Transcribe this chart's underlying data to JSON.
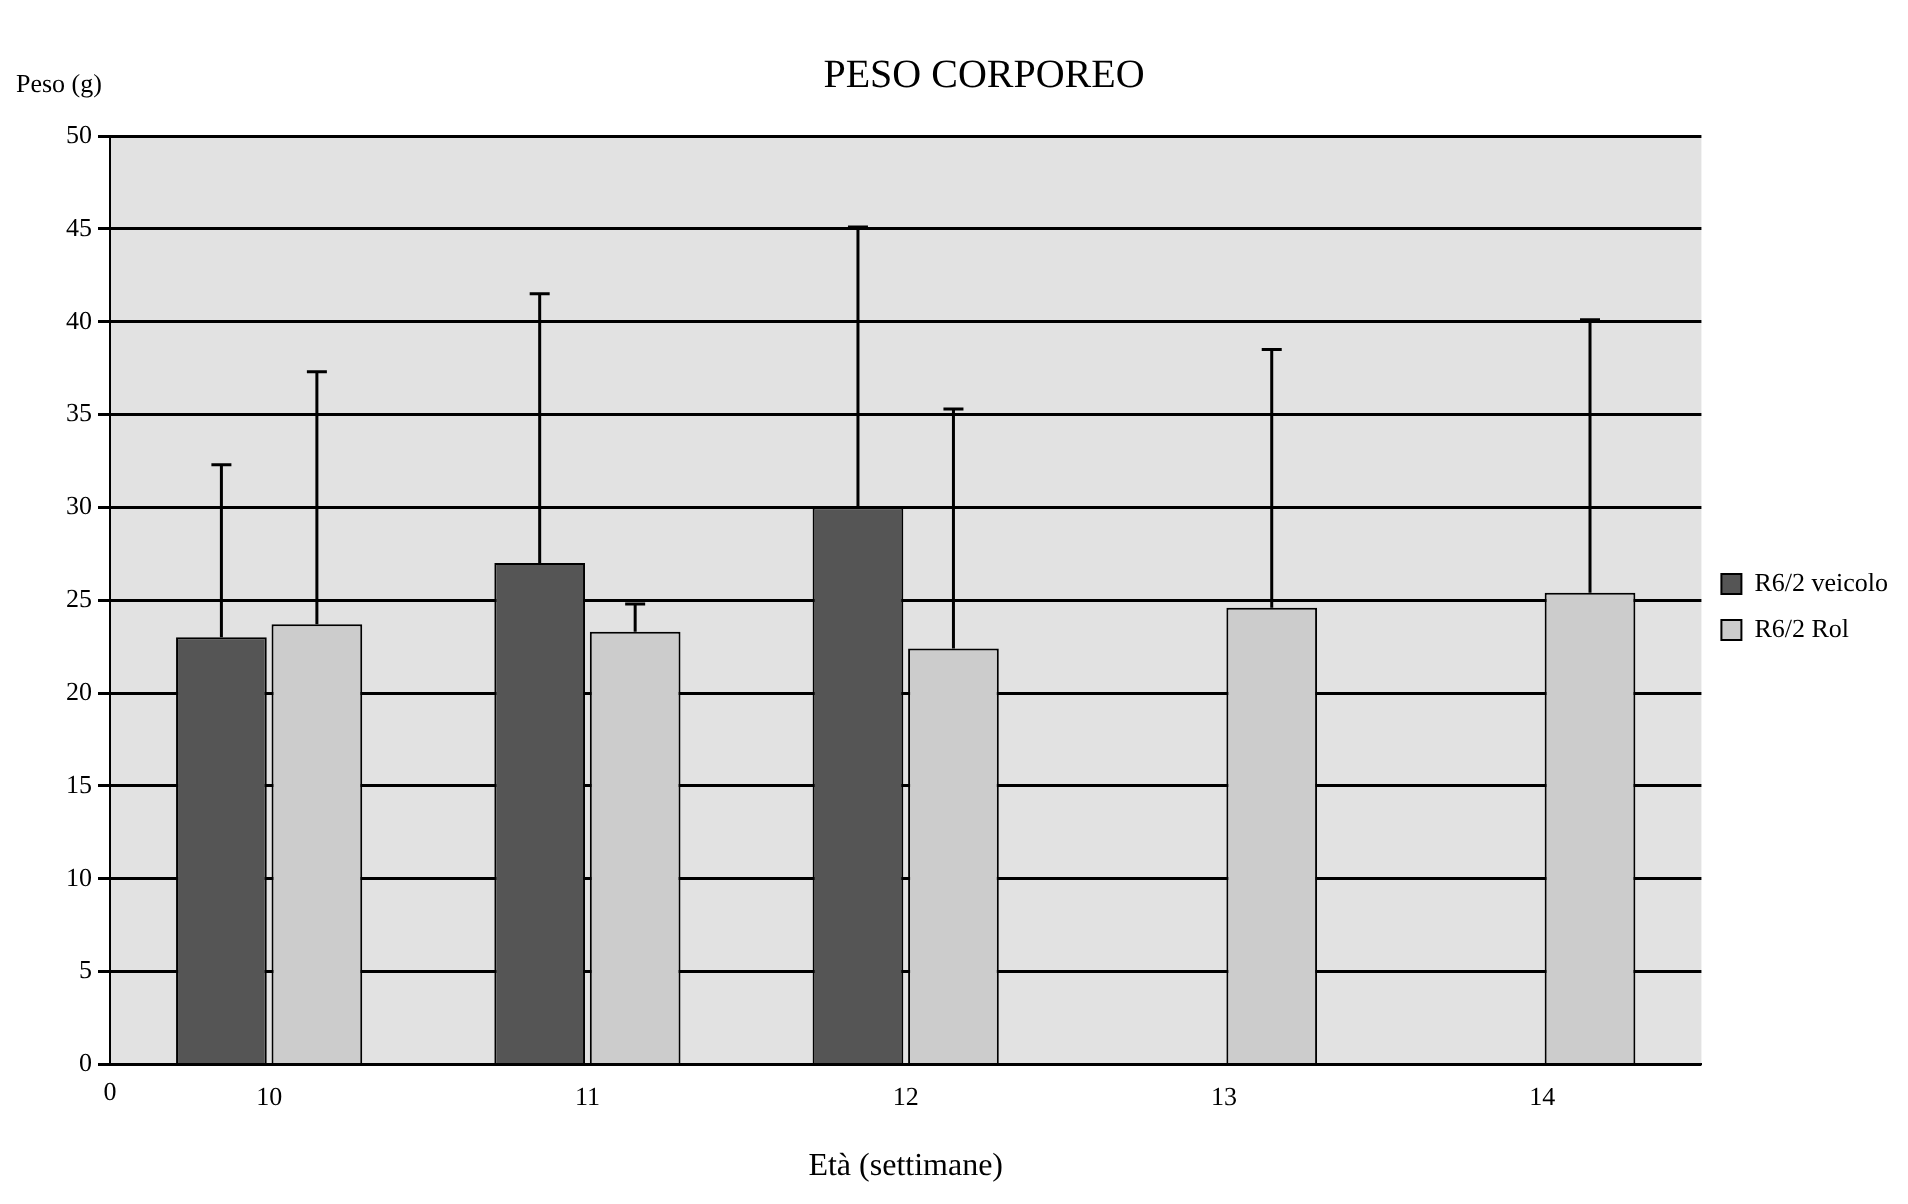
{
  "chart_data": {
    "type": "bar",
    "title": "PESO CORPOREO",
    "xlabel": "Età (settimane)",
    "ylabel": "Peso (g)",
    "categories": [
      "10",
      "11",
      "12",
      "13",
      "14"
    ],
    "series": [
      {
        "name": "R6/2 veicolo",
        "color": "#555555",
        "values": [
          23,
          27,
          30,
          null,
          null
        ],
        "errors": [
          [
            23,
            32.3
          ],
          [
            27,
            41.5
          ],
          [
            30,
            45.1
          ],
          null,
          null
        ]
      },
      {
        "name": "R6/2 Rol",
        "color": "#cccccc",
        "values": [
          23.7,
          23.3,
          22.4,
          24.6,
          25.4
        ],
        "errors": [
          [
            23.7,
            37.3
          ],
          [
            23.3,
            24.8
          ],
          [
            22.4,
            35.3
          ],
          [
            24.6,
            38.5
          ],
          [
            25.4,
            40.1
          ]
        ]
      }
    ],
    "ylim": [
      0,
      50
    ],
    "yticks": [
      0,
      5,
      10,
      15,
      20,
      25,
      30,
      35,
      40,
      45,
      50
    ],
    "grid": "y",
    "legend": "right",
    "annotations": [
      "0"
    ]
  }
}
